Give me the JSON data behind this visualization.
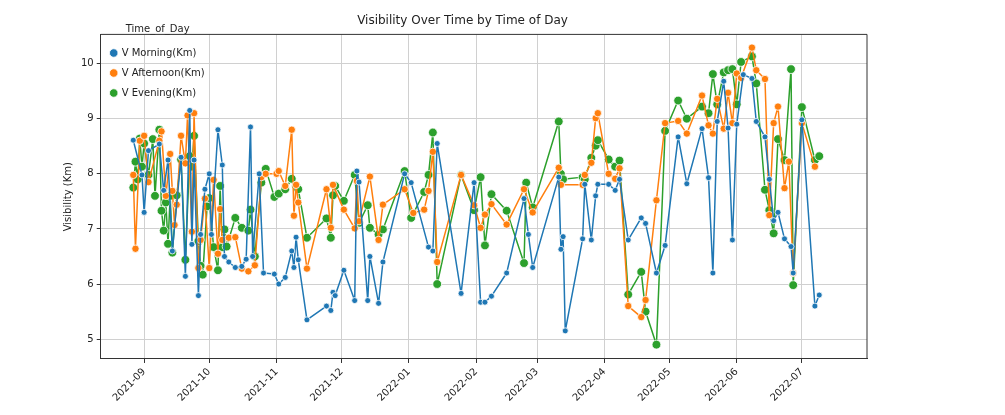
{
  "chart_data": {
    "type": "line",
    "title": "Visibility Over Time by Time of Day",
    "ylabel": "Visibility (Km)",
    "legend_title": "Time_of_Day",
    "legend": "top left",
    "grid": true,
    "marker": "circle",
    "line_style": "solid",
    "xlim": [
      "2021-08-12",
      "2022-07-31"
    ],
    "xticks": [
      "2021-09",
      "2021-10",
      "2021-11",
      "2021-12",
      "2022-01",
      "2022-02",
      "2022-03",
      "2022-04",
      "2022-05",
      "2022-06",
      "2022-07"
    ],
    "ylim": [
      4.64,
      10.53
    ],
    "yticks": [
      5,
      6,
      7,
      8,
      9,
      10
    ],
    "series": [
      {
        "name": "V Morning(Km)",
        "color": "#1f77b4",
        "x": [
          "2021-08-27",
          "2021-08-31",
          "2021-09-01",
          "2021-09-03",
          "2021-09-08",
          "2021-09-10",
          "2021-09-12",
          "2021-09-14",
          "2021-09-18",
          "2021-09-20",
          "2021-09-22",
          "2021-09-23",
          "2021-09-24",
          "2021-09-26",
          "2021-09-27",
          "2021-09-29",
          "2021-10-01",
          "2021-10-02",
          "2021-10-05",
          "2021-10-07",
          "2021-10-08",
          "2021-10-10",
          "2021-10-13",
          "2021-10-16",
          "2021-10-18",
          "2021-10-20",
          "2021-10-21",
          "2021-10-24",
          "2021-10-26",
          "2021-10-31",
          "2021-11-02",
          "2021-11-05",
          "2021-11-08",
          "2021-11-09",
          "2021-11-10",
          "2021-11-11",
          "2021-11-15",
          "2021-11-24",
          "2021-11-26",
          "2021-11-27",
          "2021-11-28",
          "2021-12-02",
          "2021-12-07",
          "2021-12-08",
          "2021-12-09",
          "2021-12-13",
          "2021-12-14",
          "2021-12-18",
          "2021-12-20",
          "2021-12-30",
          "2022-01-02",
          "2022-01-10",
          "2022-01-12",
          "2022-01-14",
          "2022-01-25",
          "2022-01-31",
          "2022-02-03",
          "2022-02-05",
          "2022-02-08",
          "2022-02-15",
          "2022-02-23",
          "2022-02-25",
          "2022-02-27",
          "2022-03-11",
          "2022-03-12",
          "2022-03-13",
          "2022-03-14",
          "2022-03-22",
          "2022-03-23",
          "2022-03-26",
          "2022-03-28",
          "2022-03-29",
          "2022-04-03",
          "2022-04-06",
          "2022-04-08",
          "2022-04-12",
          "2022-04-18",
          "2022-04-20",
          "2022-04-25",
          "2022-04-29",
          "2022-05-05",
          "2022-05-09",
          "2022-05-16",
          "2022-05-19",
          "2022-05-21",
          "2022-05-23",
          "2022-05-26",
          "2022-05-28",
          "2022-05-30",
          "2022-06-01",
          "2022-06-04",
          "2022-06-08",
          "2022-06-10",
          "2022-06-14",
          "2022-06-16",
          "2022-06-18",
          "2022-06-20",
          "2022-06-23",
          "2022-06-26",
          "2022-06-27",
          "2022-07-01",
          "2022-07-07",
          "2022-07-09"
        ],
        "values": [
          8.61,
          7.98,
          7.3,
          8.42,
          8.54,
          7.7,
          8.25,
          6.6,
          8.3,
          6.14,
          9.15,
          6.72,
          8.25,
          5.79,
          6.9,
          7.72,
          8.0,
          6.9,
          8.8,
          8.16,
          6.5,
          6.4,
          6.3,
          6.32,
          6.45,
          8.85,
          6.5,
          8.0,
          6.2,
          6.18,
          6.0,
          6.12,
          6.6,
          6.3,
          6.85,
          6.44,
          5.35,
          5.6,
          5.52,
          5.85,
          5.79,
          6.25,
          5.7,
          8.05,
          7.85,
          5.7,
          6.5,
          5.65,
          6.4,
          8.0,
          7.84,
          6.67,
          6.6,
          8.55,
          5.83,
          7.84,
          5.67,
          5.67,
          5.78,
          6.2,
          7.55,
          6.9,
          6.3,
          7.94,
          6.63,
          6.86,
          5.15,
          6.82,
          7.81,
          6.8,
          7.6,
          7.81,
          7.81,
          7.7,
          7.9,
          6.8,
          7.2,
          7.1,
          6.2,
          6.7,
          8.67,
          7.82,
          8.82,
          7.93,
          6.2,
          8.95,
          9.68,
          8.83,
          6.8,
          8.9,
          9.8,
          9.73,
          8.95,
          8.67,
          7.9,
          7.15,
          7.3,
          6.82,
          6.68,
          6.2,
          8.98,
          5.6,
          5.8
        ]
      },
      {
        "name": "V Afternoon(Km)",
        "color": "#ff7f0e",
        "x": [
          "2021-08-27",
          "2021-08-28",
          "2021-08-30",
          "2021-09-01",
          "2021-09-03",
          "2021-09-08",
          "2021-09-09",
          "2021-09-11",
          "2021-09-13",
          "2021-09-14",
          "2021-09-15",
          "2021-09-16",
          "2021-09-18",
          "2021-09-20",
          "2021-09-21",
          "2021-09-23",
          "2021-09-24",
          "2021-09-26",
          "2021-09-27",
          "2021-09-29",
          "2021-10-01",
          "2021-10-03",
          "2021-10-05",
          "2021-10-06",
          "2021-10-07",
          "2021-10-10",
          "2021-10-13",
          "2021-10-16",
          "2021-10-19",
          "2021-10-22",
          "2021-10-25",
          "2021-10-27",
          "2021-11-01",
          "2021-11-02",
          "2021-11-05",
          "2021-11-08",
          "2021-11-09",
          "2021-11-10",
          "2021-11-11",
          "2021-11-15",
          "2021-11-24",
          "2021-11-26",
          "2021-11-27",
          "2021-12-02",
          "2021-12-07",
          "2021-12-08",
          "2021-12-09",
          "2021-12-14",
          "2021-12-18",
          "2021-12-20",
          "2021-12-30",
          "2022-01-03",
          "2022-01-08",
          "2022-01-10",
          "2022-01-12",
          "2022-01-14",
          "2022-01-25",
          "2022-01-31",
          "2022-02-03",
          "2022-02-05",
          "2022-02-08",
          "2022-02-15",
          "2022-02-23",
          "2022-02-27",
          "2022-03-11",
          "2022-03-12",
          "2022-03-22",
          "2022-03-23",
          "2022-03-26",
          "2022-03-28",
          "2022-03-29",
          "2022-04-03",
          "2022-04-06",
          "2022-04-08",
          "2022-04-12",
          "2022-04-18",
          "2022-04-20",
          "2022-04-25",
          "2022-04-29",
          "2022-05-05",
          "2022-05-09",
          "2022-05-16",
          "2022-05-19",
          "2022-05-21",
          "2022-05-23",
          "2022-05-26",
          "2022-05-28",
          "2022-05-30",
          "2022-06-01",
          "2022-06-03",
          "2022-06-08",
          "2022-06-10",
          "2022-06-14",
          "2022-06-16",
          "2022-06-18",
          "2022-06-20",
          "2022-06-23",
          "2022-06-25",
          "2022-06-27",
          "2022-07-01",
          "2022-07-07"
        ],
        "values": [
          7.98,
          6.64,
          8.6,
          8.69,
          7.85,
          8.6,
          8.77,
          7.6,
          8.36,
          7.69,
          7.07,
          7.44,
          8.69,
          8.19,
          9.06,
          6.95,
          9.1,
          6.29,
          6.8,
          7.55,
          6.29,
          7.89,
          6.55,
          7.36,
          6.8,
          6.84,
          6.85,
          6.28,
          6.23,
          6.34,
          7.94,
          8.0,
          8.0,
          8.05,
          7.78,
          8.8,
          7.24,
          7.8,
          7.48,
          6.28,
          7.72,
          7.02,
          7.8,
          7.35,
          7.01,
          7.87,
          7.14,
          7.95,
          6.8,
          7.44,
          7.72,
          7.29,
          7.35,
          7.69,
          8.4,
          6.4,
          7.98,
          7.43,
          7.02,
          7.26,
          7.45,
          7.08,
          7.72,
          7.3,
          8.11,
          7.8,
          7.8,
          7.98,
          8.2,
          9.01,
          9.1,
          8.0,
          7.91,
          8.1,
          5.6,
          5.4,
          5.71,
          7.52,
          8.92,
          8.96,
          8.73,
          9.42,
          8.88,
          8.73,
          9.36,
          8.82,
          9.47,
          8.92,
          9.82,
          9.74,
          10.29,
          9.88,
          9.72,
          7.25,
          8.92,
          9.22,
          7.74,
          8.22,
          6.2,
          8.92,
          8.13
        ]
      },
      {
        "name": "V Evening(Km)",
        "color": "#2ca02c",
        "x": [
          "2021-08-27",
          "2021-08-28",
          "2021-08-29",
          "2021-08-30",
          "2021-08-31",
          "2021-09-01",
          "2021-09-03",
          "2021-09-05",
          "2021-09-06",
          "2021-09-08",
          "2021-09-09",
          "2021-09-10",
          "2021-09-11",
          "2021-09-12",
          "2021-09-13",
          "2021-09-14",
          "2021-09-16",
          "2021-09-18",
          "2021-09-20",
          "2021-09-22",
          "2021-09-23",
          "2021-09-24",
          "2021-09-26",
          "2021-09-27",
          "2021-09-28",
          "2021-09-30",
          "2021-10-01",
          "2021-10-03",
          "2021-10-05",
          "2021-10-06",
          "2021-10-07",
          "2021-10-08",
          "2021-10-09",
          "2021-10-13",
          "2021-10-16",
          "2021-10-19",
          "2021-10-20",
          "2021-10-22",
          "2021-10-25",
          "2021-10-27",
          "2021-10-31",
          "2021-11-02",
          "2021-11-05",
          "2021-11-08",
          "2021-11-10",
          "2021-11-11",
          "2021-11-15",
          "2021-11-24",
          "2021-11-26",
          "2021-11-27",
          "2021-11-28",
          "2021-12-02",
          "2021-12-07",
          "2021-12-09",
          "2021-12-13",
          "2021-12-14",
          "2021-12-18",
          "2021-12-20",
          "2021-12-30",
          "2022-01-02",
          "2022-01-08",
          "2022-01-10",
          "2022-01-12",
          "2022-01-14",
          "2022-01-25",
          "2022-01-31",
          "2022-02-03",
          "2022-02-05",
          "2022-02-08",
          "2022-02-15",
          "2022-02-23",
          "2022-02-24",
          "2022-02-27",
          "2022-03-11",
          "2022-03-12",
          "2022-03-13",
          "2022-03-22",
          "2022-03-23",
          "2022-03-26",
          "2022-03-28",
          "2022-03-29",
          "2022-04-03",
          "2022-04-06",
          "2022-04-08",
          "2022-04-12",
          "2022-04-18",
          "2022-04-20",
          "2022-04-25",
          "2022-04-29",
          "2022-05-05",
          "2022-05-09",
          "2022-05-16",
          "2022-05-19",
          "2022-05-21",
          "2022-05-23",
          "2022-05-26",
          "2022-05-28",
          "2022-05-30",
          "2022-06-01",
          "2022-06-03",
          "2022-06-08",
          "2022-06-10",
          "2022-06-14",
          "2022-06-16",
          "2022-06-18",
          "2022-06-20",
          "2022-06-23",
          "2022-06-26",
          "2022-06-27",
          "2022-07-01",
          "2022-07-07",
          "2022-07-09"
        ],
        "values": [
          7.75,
          8.22,
          7.9,
          8.64,
          8.13,
          8.55,
          7.98,
          8.63,
          7.6,
          8.8,
          7.33,
          6.97,
          7.48,
          6.73,
          7.6,
          6.57,
          7.61,
          8.26,
          6.44,
          8.32,
          8.13,
          8.69,
          6.78,
          6.33,
          6.17,
          7.41,
          7.56,
          6.67,
          6.25,
          7.78,
          6.67,
          6.99,
          6.68,
          7.2,
          7.02,
          6.97,
          7.35,
          6.5,
          7.84,
          8.09,
          7.58,
          7.64,
          7.72,
          7.91,
          7.78,
          7.72,
          6.84,
          7.19,
          6.84,
          7.61,
          7.78,
          7.51,
          7.98,
          7.11,
          7.43,
          7.02,
          6.9,
          6.99,
          8.05,
          7.2,
          7.67,
          7.98,
          8.75,
          6.0,
          7.98,
          7.34,
          7.94,
          6.7,
          7.63,
          7.33,
          6.38,
          7.84,
          7.39,
          8.95,
          8.0,
          7.9,
          7.94,
          7.9,
          8.29,
          8.51,
          8.61,
          8.26,
          8.13,
          8.24,
          5.81,
          6.22,
          5.5,
          4.9,
          8.78,
          9.33,
          9.0,
          9.22,
          9.1,
          9.81,
          9.26,
          9.84,
          9.88,
          9.9,
          9.26,
          10.03,
          10.13,
          9.64,
          7.71,
          7.34,
          6.92,
          8.63,
          8.25,
          9.9,
          5.98,
          9.21,
          8.25,
          8.32
        ]
      }
    ]
  }
}
